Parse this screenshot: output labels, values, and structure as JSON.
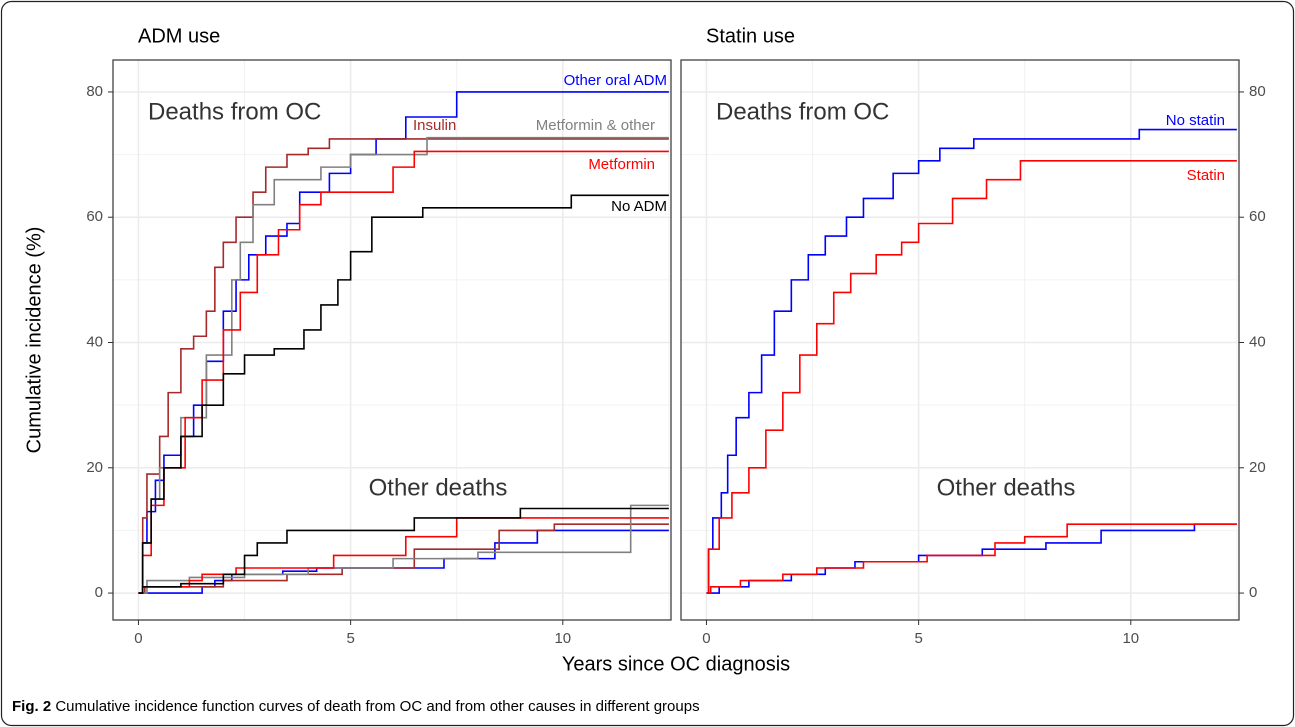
{
  "x_label": "Years since OC diagnosis",
  "y_label": "Cumulative incidence (%)",
  "caption": {
    "label": "Fig. 2",
    "text": "Cumulative incidence function curves of death from OC and from other causes in different groups"
  },
  "chart_data": [
    {
      "type": "line",
      "step": true,
      "title": "ADM use",
      "y_axis_position": "left",
      "grid": true,
      "annotations": [
        "Deaths from OC",
        "Other deaths"
      ],
      "xlim": [
        -0.6,
        12.55
      ],
      "xticks": [
        0,
        5,
        10
      ],
      "ylim": [
        -4.3,
        85.1
      ],
      "yticks": [
        0,
        20,
        40,
        60,
        80
      ],
      "series": [
        {
          "name": "Other oral ADM",
          "color": "#0000ff",
          "x": [
            0,
            0.1,
            0.2,
            0.4,
            0.6,
            1.0,
            1.3,
            1.6,
            2.0,
            2.3,
            2.6,
            3.0,
            3.5,
            3.8,
            4.5,
            5.0,
            5.6,
            6.3,
            7.5,
            12.5
          ],
          "values": [
            0,
            8,
            13,
            18,
            22,
            25,
            30,
            37,
            45,
            50,
            54,
            57,
            59,
            64,
            67,
            70,
            72.5,
            76,
            80,
            80
          ]
        },
        {
          "name": "Insulin",
          "color": "#a52a2a",
          "x": [
            0,
            0.1,
            0.2,
            0.5,
            0.7,
            1.0,
            1.3,
            1.6,
            1.8,
            2.0,
            2.3,
            2.7,
            3.0,
            3.5,
            4.0,
            4.5,
            12.5
          ],
          "values": [
            0,
            12,
            19,
            25,
            32,
            39,
            41,
            45,
            52,
            56,
            60,
            64,
            68,
            70,
            71,
            72.5,
            72.5
          ]
        },
        {
          "name": "Metformin & other",
          "color": "#808080",
          "x": [
            0,
            0.1,
            0.3,
            0.5,
            1.0,
            1.6,
            2.2,
            2.4,
            2.7,
            3.2,
            4.3,
            5.0,
            6.8,
            12.5
          ],
          "values": [
            0,
            8,
            15,
            20,
            28,
            38,
            50,
            56,
            62,
            66,
            68,
            70,
            72.7,
            72.7
          ]
        },
        {
          "name": "Metformin",
          "color": "#ff0000",
          "x": [
            0,
            0.1,
            0.3,
            0.6,
            1.1,
            1.5,
            2.0,
            2.4,
            2.8,
            3.3,
            3.8,
            4.3,
            6.0,
            6.5,
            12.5
          ],
          "values": [
            0,
            6,
            14,
            20,
            28,
            34,
            42,
            48,
            54,
            58,
            62,
            64,
            68,
            70.5,
            70.5
          ]
        },
        {
          "name": "No ADM",
          "color": "#000000",
          "x": [
            0,
            0.1,
            0.3,
            0.6,
            1.0,
            1.5,
            2.0,
            2.5,
            3.2,
            3.9,
            4.3,
            4.7,
            5.0,
            5.5,
            6.7,
            10.2,
            12.5
          ],
          "values": [
            0,
            8,
            15,
            20,
            25,
            30,
            35,
            38,
            39,
            42,
            46,
            50,
            54.5,
            60,
            61.5,
            63.5,
            63.5
          ]
        },
        {
          "color": "#0000ff",
          "x": [
            0,
            1.5,
            1.8,
            2.2,
            3.4,
            4.2,
            7.2,
            8.4,
            9.4,
            12.5
          ],
          "values": [
            0,
            1,
            2,
            3,
            3.5,
            4,
            5.5,
            8,
            10,
            10
          ]
        },
        {
          "color": "#a52a2a",
          "x": [
            0,
            0.15,
            2.0,
            3.5,
            4.8,
            6.5,
            8.5,
            9.8,
            12.5
          ],
          "values": [
            0,
            1,
            2,
            3,
            4,
            7,
            10,
            11,
            11
          ]
        },
        {
          "color": "#808080",
          "x": [
            0,
            0.2,
            1.2,
            2.5,
            4.0,
            6.0,
            8.0,
            11.6,
            12.5
          ],
          "values": [
            0,
            2,
            2.5,
            3,
            4,
            5.5,
            6.5,
            14,
            14
          ]
        },
        {
          "color": "#ff0000",
          "x": [
            0,
            0.1,
            1.2,
            1.5,
            2.3,
            4.6,
            6.3,
            7.5,
            12.5
          ],
          "values": [
            0,
            1,
            2,
            3,
            4,
            6,
            9,
            12,
            12
          ]
        },
        {
          "color": "#000000",
          "x": [
            0,
            0.1,
            1.0,
            2.0,
            2.5,
            2.8,
            3.5,
            6.5,
            9.0,
            12.5
          ],
          "values": [
            0,
            1,
            1.5,
            3,
            6,
            8,
            10,
            12,
            13.5,
            13.5
          ]
        }
      ]
    },
    {
      "type": "line",
      "step": true,
      "title": "Statin use",
      "y_axis_position": "right",
      "grid": true,
      "annotations": [
        "Deaths from OC",
        "Other deaths"
      ],
      "xlim": [
        -0.6,
        12.55
      ],
      "xticks": [
        0,
        5,
        10
      ],
      "ylim": [
        -4.3,
        85.1
      ],
      "yticks": [
        0,
        20,
        40,
        60,
        80
      ],
      "series": [
        {
          "name": "No statin",
          "color": "#0000ff",
          "x": [
            0,
            0.05,
            0.15,
            0.35,
            0.5,
            0.7,
            1.0,
            1.3,
            1.6,
            2.0,
            2.4,
            2.8,
            3.3,
            3.7,
            4.4,
            5.0,
            5.5,
            6.3,
            10.2,
            12.5
          ],
          "values": [
            0,
            7,
            12,
            16,
            22,
            28,
            32,
            38,
            45,
            50,
            54,
            57,
            60,
            63,
            67,
            69,
            71,
            72.5,
            74,
            74
          ]
        },
        {
          "name": "Statin",
          "color": "#ff0000",
          "x": [
            0,
            0.05,
            0.3,
            0.6,
            1.0,
            1.4,
            1.8,
            2.2,
            2.6,
            3.0,
            3.4,
            4.0,
            4.6,
            5.0,
            5.8,
            6.6,
            7.4,
            12.5
          ],
          "values": [
            0,
            7,
            12,
            16,
            20,
            26,
            32,
            38,
            43,
            48,
            51,
            54,
            56,
            59,
            63,
            66,
            69,
            69
          ]
        },
        {
          "color": "#0000ff",
          "x": [
            0,
            0.3,
            1.0,
            2.0,
            2.8,
            3.5,
            5.0,
            6.5,
            8.0,
            9.3,
            11.5,
            12.5
          ],
          "values": [
            0,
            1,
            2,
            3,
            4,
            5,
            6,
            7,
            8,
            10,
            11,
            11
          ]
        },
        {
          "color": "#ff0000",
          "x": [
            0,
            0.1,
            0.8,
            1.8,
            2.6,
            3.7,
            5.2,
            6.8,
            7.5,
            8.5,
            12.5
          ],
          "values": [
            0,
            1,
            2,
            3,
            4,
            5,
            6,
            8,
            9,
            11,
            11
          ]
        }
      ]
    }
  ]
}
